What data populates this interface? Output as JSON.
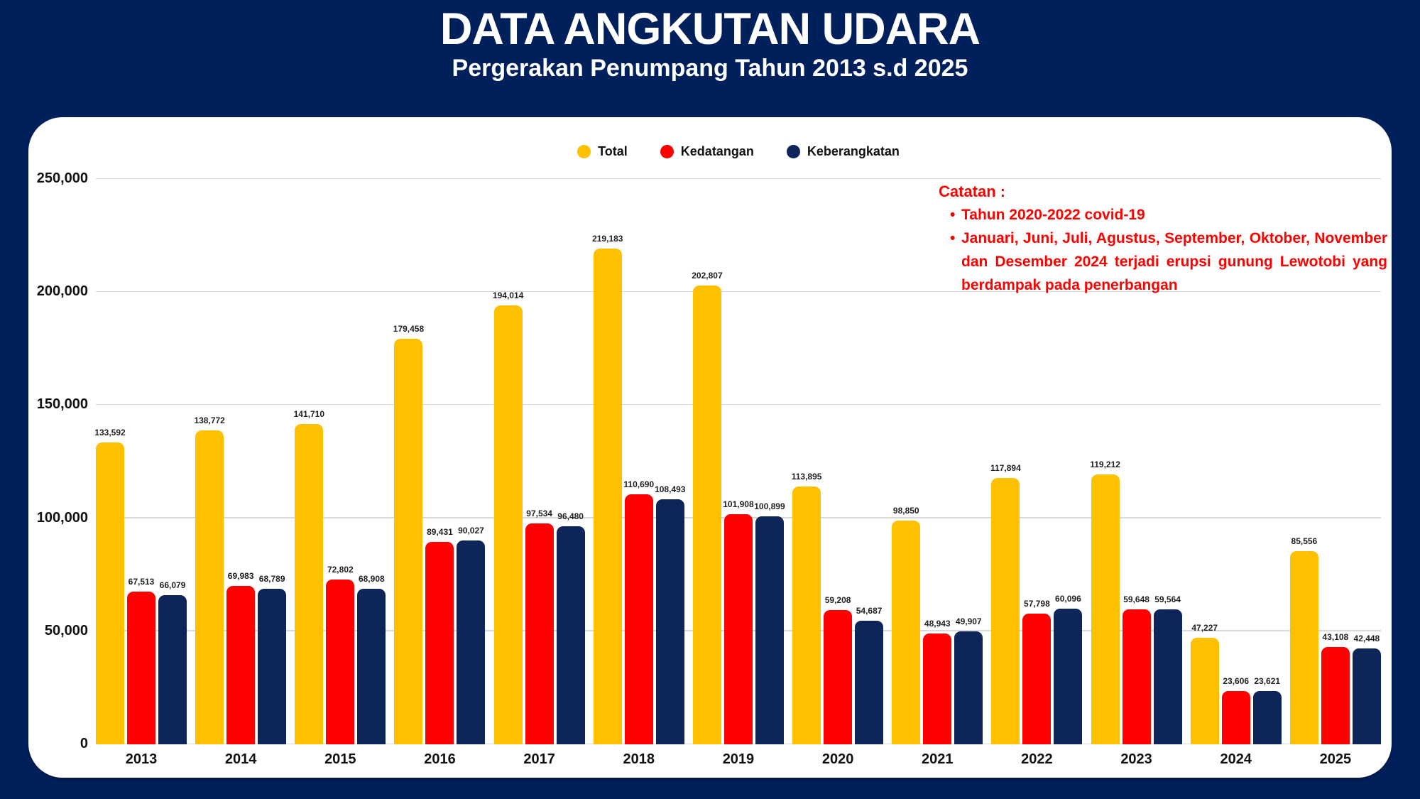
{
  "header": {
    "title": "DATA ANGKUTAN UDARA",
    "subtitle": "Pergerakan Penumpang Tahun 2013 s.d 2025"
  },
  "note": {
    "heading": "Catatan :",
    "bullet": "•",
    "color": "#FF0000",
    "items": [
      "Tahun 2020-2022 covid-19",
      "Januari, Juni, Juli, Agustus, September, Oktober, November dan Desember 2024 terjadi erupsi gunung Lewotobi yang berdampak pada penerbangan"
    ]
  },
  "colors": {
    "background": "#00205C",
    "panel": "#FFFFFF",
    "gridline": "#D9D9D9",
    "total": "#FFC000",
    "kedatangan": "#FF0000",
    "keberangkatan": "#0D2559"
  },
  "chart_data": {
    "type": "bar",
    "title": "DATA ANGKUTAN UDARA",
    "subtitle": "Pergerakan Penumpang Tahun 2013 s.d 2025",
    "xlabel": "",
    "ylabel": "",
    "grid": true,
    "legend_position": "top",
    "ylim": [
      0,
      250000
    ],
    "yticks": [
      0,
      50000,
      100000,
      150000,
      200000,
      250000
    ],
    "ytick_labels": [
      "0",
      "50,000",
      "100,000",
      "150,000",
      "200,000",
      "250,000"
    ],
    "categories": [
      "2013",
      "2014",
      "2015",
      "2016",
      "2017",
      "2018",
      "2019",
      "2020",
      "2021",
      "2022",
      "2023",
      "2024",
      "2025"
    ],
    "series": [
      {
        "name": "Total",
        "color": "#FFC000",
        "values": [
          133592,
          138772,
          141710,
          179458,
          194014,
          219183,
          202807,
          113895,
          98850,
          117894,
          119212,
          47227,
          85556
        ]
      },
      {
        "name": "Kedatangan",
        "color": "#FF0000",
        "values": [
          67513,
          69983,
          72802,
          89431,
          97534,
          110690,
          101908,
          59208,
          48943,
          57798,
          59648,
          23606,
          43108
        ]
      },
      {
        "name": "Keberangkatan",
        "color": "#0D2559",
        "values": [
          66079,
          68789,
          68908,
          90027,
          96480,
          108493,
          100899,
          54687,
          49907,
          60096,
          59564,
          23621,
          42448
        ]
      }
    ]
  }
}
